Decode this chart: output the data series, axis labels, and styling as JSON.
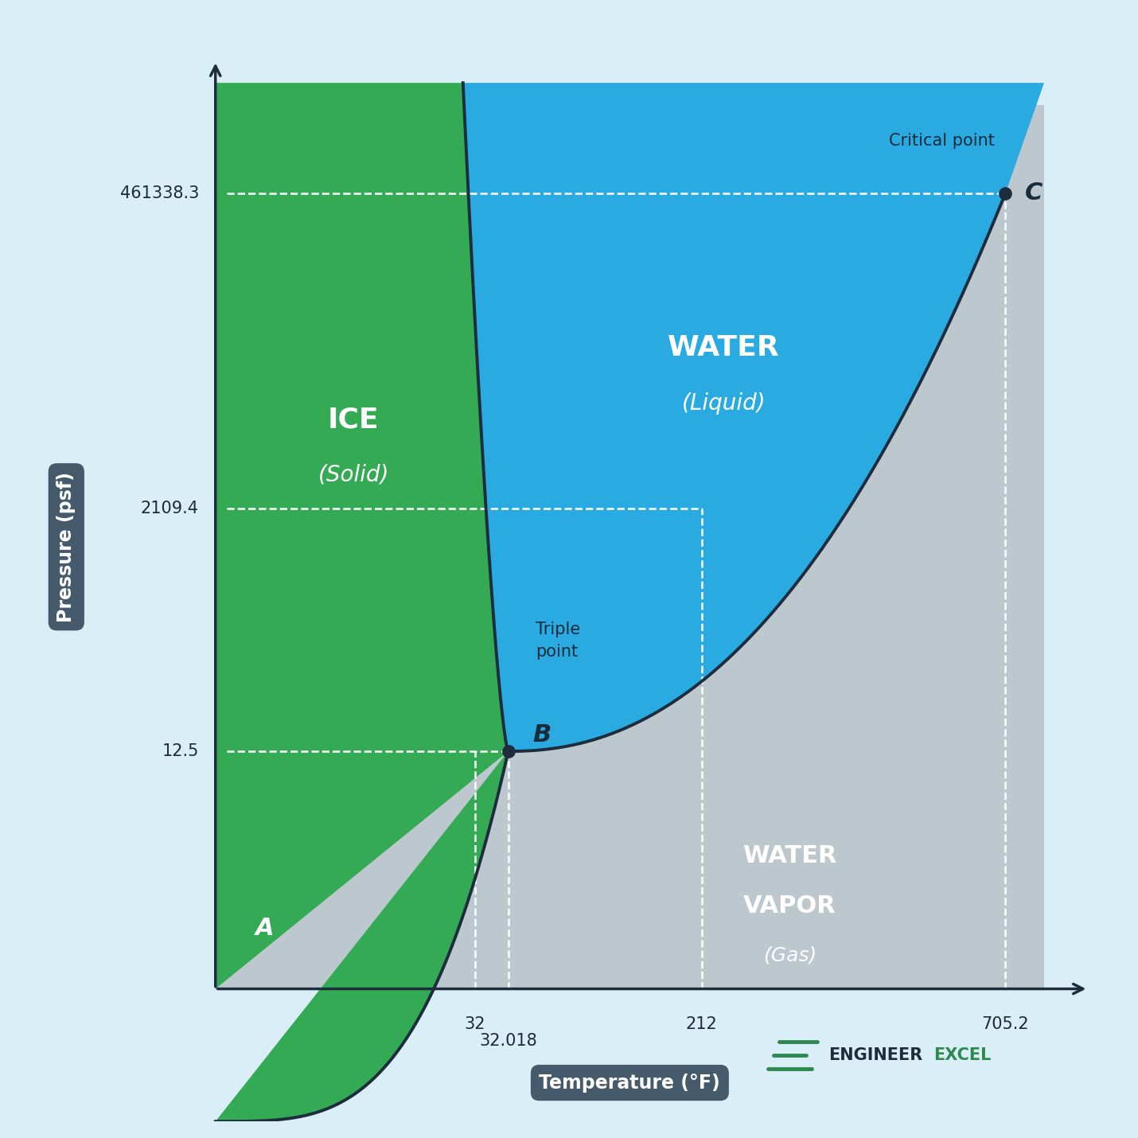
{
  "background_color": "#daeef8",
  "plot_bg_color": "#daeef8",
  "ice_color": "#34aa54",
  "water_color": "#29aae1",
  "vapor_color": "#bcc8ce",
  "axes_label_bg": "#455a6b",
  "triple_point_T": 32.018,
  "triple_point_P": 12.5,
  "critical_point_T": 705.2,
  "critical_point_P": 461338.3,
  "x_label": "Temperature (°F)",
  "y_label": "Pressure (psf)",
  "ice_label": "ICE",
  "ice_sublabel": "(Solid)",
  "water_label": "WATER",
  "water_sublabel": "(Liquid)",
  "vapor_label1": "WATER",
  "vapor_label2": "VAPOR",
  "vapor_sublabel": "(Gas)",
  "triple_label": "Triple\npoint",
  "critical_label": "Critical point",
  "point_A_label": "A",
  "point_B_label": "B",
  "point_C_label": "C",
  "font_color_dark": "#1a2b3c",
  "font_color_white": "#ffffff",
  "line_color": "#1e2d3d",
  "tick_labels_x": [
    "32",
    "32.018",
    "212",
    "705.2"
  ],
  "tick_labels_y": [
    "12.5",
    "2109.4",
    "461338.3"
  ],
  "engineerexcel_dark": "#1e2d3d",
  "engineerexcel_green": "#2d8a4e"
}
